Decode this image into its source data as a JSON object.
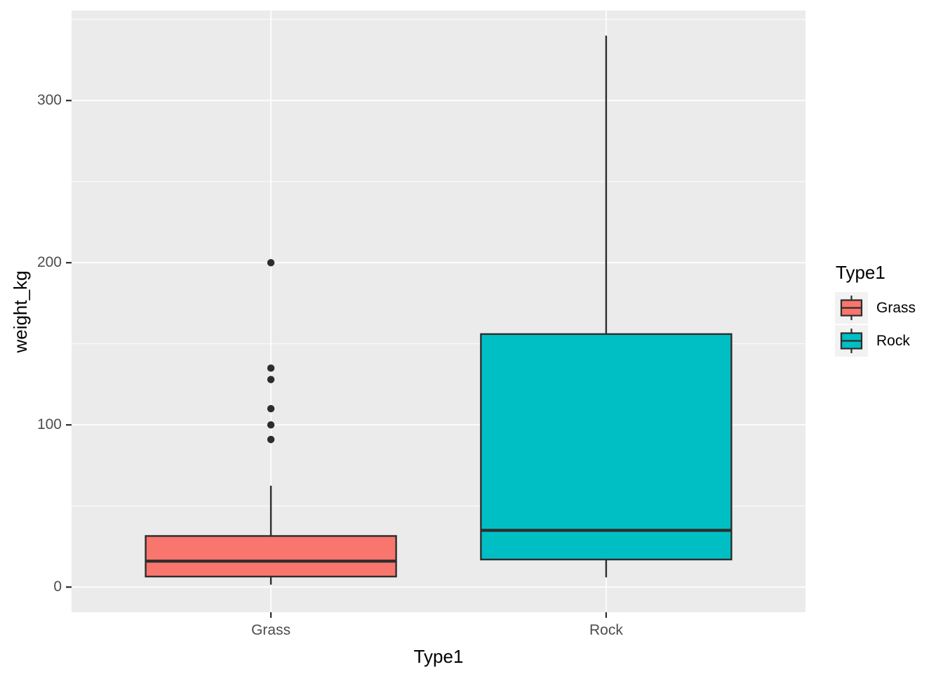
{
  "chart_data": {
    "type": "boxplot",
    "title": "",
    "xlabel": "Type1",
    "ylabel": "weight_kg",
    "categories": [
      "Grass",
      "Rock"
    ],
    "series": [
      {
        "name": "Grass",
        "fill": "#F8766D",
        "min": 1.5,
        "q1": 6.5,
        "median": 16,
        "q3": 31.5,
        "max": 62.5,
        "outliers": [
          91,
          100,
          110,
          128,
          135,
          200
        ]
      },
      {
        "name": "Rock",
        "fill": "#00BFC4",
        "min": 6,
        "q1": 17,
        "median": 35,
        "q3": 156,
        "max": 340,
        "outliers": []
      }
    ],
    "y_ticks": [
      0,
      100,
      200,
      300
    ],
    "y_minor_ticks": [
      50,
      150,
      250,
      350
    ],
    "ylim": [
      -15.5,
      355.5
    ],
    "grid": "major and minor horizontal white lines, vertical white line per category",
    "legend": {
      "position": "right",
      "title": "Type1",
      "entries": [
        {
          "label": "Grass",
          "fill": "#F8766D"
        },
        {
          "label": "Rock",
          "fill": "#00BFC4"
        }
      ]
    },
    "colors": {
      "panel_bg": "#EBEBEB",
      "grid_line": "#FFFFFF",
      "stroke": "#2D2D2D",
      "tick_label": "#4D4D4D",
      "axis_title": "#000000",
      "legend_key_bg": "#F2F2F2"
    }
  }
}
